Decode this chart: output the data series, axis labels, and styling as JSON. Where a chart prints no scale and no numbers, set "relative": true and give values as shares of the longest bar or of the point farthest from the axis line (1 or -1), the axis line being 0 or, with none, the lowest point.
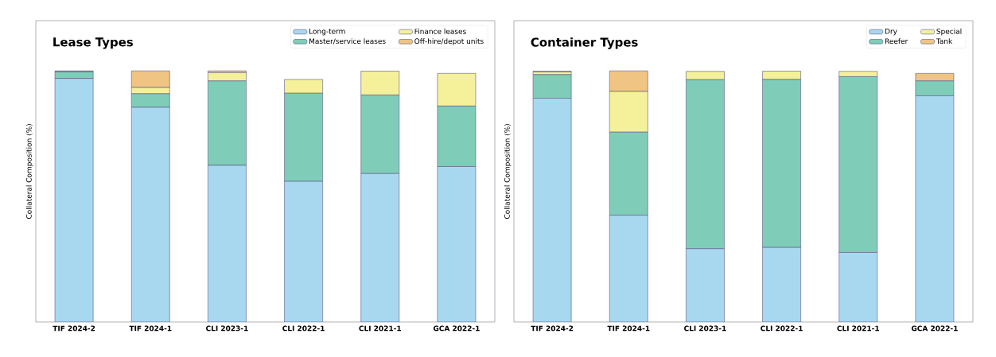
{
  "chart_data": [
    {
      "type": "bar",
      "stacked": true,
      "relative": true,
      "title": "Lease Types",
      "ylabel": "Collateral Composition (%)",
      "legend": "top right",
      "categories": [
        "TIF 2024-2",
        "TIF 2024-1",
        "CLI 2023-1",
        "CLI 2022-1",
        "CLI 2021-1",
        "GCA 2022-1"
      ],
      "series": [
        {
          "name": "Long-term",
          "color": "#a8d8f0",
          "values": [
            0.97,
            0.855,
            0.624,
            0.56,
            0.591,
            0.619
          ]
        },
        {
          "name": "Master/service leases",
          "color": "#7fcdb8",
          "values": [
            0.026,
            0.054,
            0.336,
            0.351,
            0.313,
            0.241
          ]
        },
        {
          "name": "Finance leases",
          "color": "#f5f09a",
          "values": [
            0.002,
            0.025,
            0.033,
            0.055,
            0.095,
            0.13
          ]
        },
        {
          "name": "Off-hire/depot units",
          "color": "#f0c482",
          "values": [
            0.002,
            0.066,
            0.007,
            0,
            0,
            0
          ]
        }
      ]
    },
    {
      "type": "bar",
      "stacked": true,
      "relative": true,
      "title": "Container Types",
      "ylabel": "Collateral Composition (%)",
      "legend": "top right",
      "categories": [
        "TIF 2024-2",
        "TIF 2024-1",
        "CLI 2023-1",
        "CLI 2022-1",
        "CLI 2021-1",
        "GCA 2022-1"
      ],
      "series": [
        {
          "name": "Dry",
          "color": "#a8d8f0",
          "values": [
            0.891,
            0.425,
            0.292,
            0.297,
            0.277,
            0.901
          ]
        },
        {
          "name": "Reefer",
          "color": "#7fcdb8",
          "values": [
            0.094,
            0.331,
            0.673,
            0.669,
            0.7,
            0.059
          ]
        },
        {
          "name": "Special",
          "color": "#f5f09a",
          "values": [
            0.011,
            0.162,
            0.033,
            0.033,
            0.021,
            0
          ]
        },
        {
          "name": "Tank",
          "color": "#f0c482",
          "values": [
            0.003,
            0.082,
            0,
            0,
            0,
            0.03
          ]
        }
      ]
    }
  ]
}
